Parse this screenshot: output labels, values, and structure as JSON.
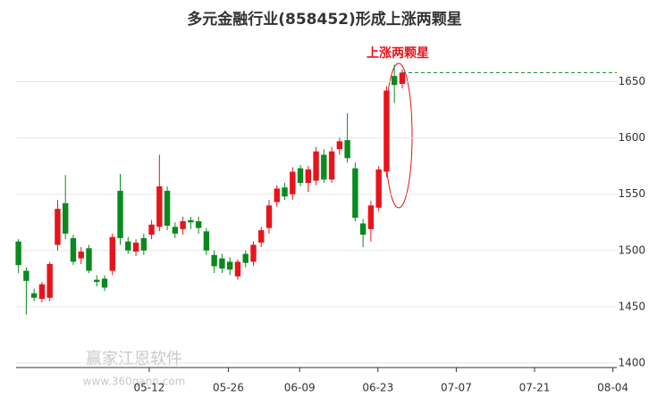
{
  "chart_data": {
    "type": "candlestick",
    "title": "多元金融行业(858452)形成上涨两颗星",
    "annotation": "上涨两颗星",
    "watermark": "赢家江恩软件",
    "watermark_url": "www.360gann.com",
    "up_color": "#e8141b",
    "down_color": "#0a8a1e",
    "x": [
      0,
      1,
      2,
      3,
      4,
      5,
      6,
      7,
      8,
      9,
      10,
      11,
      12,
      13,
      14,
      15,
      16,
      17,
      18,
      19,
      20,
      21,
      22,
      23,
      24,
      25,
      26,
      27,
      28,
      29,
      30,
      31,
      32,
      33,
      34,
      35,
      36,
      37,
      38,
      39,
      40,
      41,
      42,
      43,
      44,
      45,
      46,
      47,
      48,
      49
    ],
    "open": [
      1508,
      1482,
      1462,
      1457,
      1458,
      1505,
      1542,
      1511,
      1493,
      1502,
      1474,
      1475,
      1482,
      1553,
      1508,
      1499,
      1511,
      1514,
      1521,
      1553,
      1521,
      1519,
      1527,
      1526,
      1517,
      1496,
      1493,
      1490,
      1477,
      1497,
      1490,
      1507,
      1520,
      1543,
      1556,
      1550,
      1573,
      1560,
      1562,
      1585,
      1563,
      1590,
      1598,
      1573,
      1524,
      1519,
      1538,
      1570,
      1655,
      1648
    ],
    "high": [
      1510,
      1485,
      1466,
      1472,
      1490,
      1545,
      1567,
      1514,
      1503,
      1505,
      1478,
      1478,
      1515,
      1568,
      1512,
      1510,
      1515,
      1527,
      1585,
      1557,
      1525,
      1530,
      1530,
      1530,
      1520,
      1500,
      1497,
      1494,
      1492,
      1500,
      1508,
      1521,
      1545,
      1558,
      1560,
      1574,
      1576,
      1575,
      1592,
      1590,
      1592,
      1600,
      1622,
      1578,
      1528,
      1544,
      1575,
      1646,
      1665,
      1661
    ],
    "low": [
      1480,
      1443,
      1455,
      1454,
      1455,
      1500,
      1510,
      1487,
      1488,
      1480,
      1468,
      1464,
      1478,
      1505,
      1497,
      1495,
      1496,
      1510,
      1517,
      1518,
      1511,
      1514,
      1519,
      1515,
      1496,
      1480,
      1480,
      1478,
      1474,
      1485,
      1486,
      1503,
      1515,
      1539,
      1545,
      1545,
      1557,
      1552,
      1558,
      1560,
      1560,
      1585,
      1578,
      1526,
      1503,
      1508,
      1535,
      1565,
      1631,
      1644
    ],
    "close": [
      1487,
      1473,
      1458,
      1470,
      1488,
      1537,
      1515,
      1490,
      1499,
      1482,
      1472,
      1467,
      1512,
      1511,
      1500,
      1507,
      1500,
      1523,
      1557,
      1522,
      1515,
      1526,
      1525,
      1520,
      1500,
      1486,
      1484,
      1483,
      1490,
      1489,
      1505,
      1518,
      1540,
      1555,
      1548,
      1570,
      1560,
      1572,
      1588,
      1563,
      1588,
      1597,
      1582,
      1529,
      1514,
      1540,
      1572,
      1642,
      1647,
      1658
    ],
    "xlim": [
      -0.3,
      76.4
    ],
    "xticks": [
      {
        "value": 16.7,
        "label": "05-12"
      },
      {
        "value": 26.8,
        "label": "05-26"
      },
      {
        "value": 35.9,
        "label": "06-09"
      },
      {
        "value": 45.9,
        "label": "06-23"
      },
      {
        "value": 55.9,
        "label": "07-07"
      },
      {
        "value": 65.9,
        "label": "07-21"
      },
      {
        "value": 75.9,
        "label": "08-04"
      }
    ],
    "ylim": [
      1400,
      1690
    ],
    "yticks": [
      1400,
      1450,
      1500,
      1550,
      1600,
      1650
    ],
    "grid": true
  }
}
